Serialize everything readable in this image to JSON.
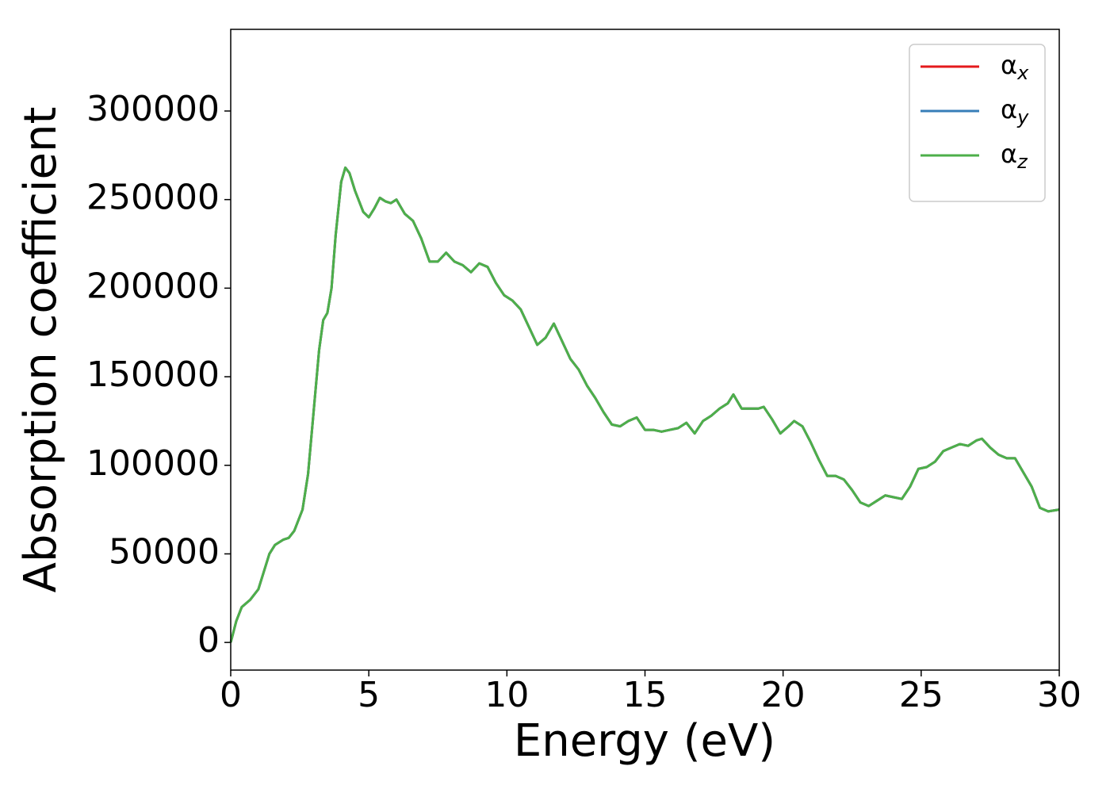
{
  "chart_data": {
    "type": "line",
    "xlabel": "Energy (eV)",
    "ylabel": "Absorption coefficient",
    "x": [
      0,
      0.2,
      0.4,
      0.7,
      1.0,
      1.2,
      1.4,
      1.6,
      1.9,
      2.1,
      2.3,
      2.6,
      2.8,
      3.0,
      3.2,
      3.35,
      3.5,
      3.65,
      3.8,
      4.0,
      4.15,
      4.3,
      4.5,
      4.8,
      5.0,
      5.2,
      5.4,
      5.6,
      5.8,
      6.0,
      6.3,
      6.6,
      6.9,
      7.2,
      7.5,
      7.8,
      8.1,
      8.4,
      8.7,
      9.0,
      9.3,
      9.6,
      9.9,
      10.2,
      10.5,
      10.8,
      11.1,
      11.4,
      11.7,
      12.0,
      12.3,
      12.6,
      12.9,
      13.2,
      13.5,
      13.8,
      14.1,
      14.4,
      14.7,
      15.0,
      15.3,
      15.6,
      15.9,
      16.2,
      16.5,
      16.8,
      17.1,
      17.4,
      17.7,
      18.0,
      18.2,
      18.5,
      18.8,
      19.1,
      19.3,
      19.6,
      19.9,
      20.2,
      20.4,
      20.7,
      21.0,
      21.3,
      21.6,
      21.9,
      22.2,
      22.5,
      22.8,
      23.1,
      23.4,
      23.7,
      24.0,
      24.3,
      24.6,
      24.9,
      25.2,
      25.5,
      25.8,
      26.1,
      26.4,
      26.7,
      27.0,
      27.2,
      27.5,
      27.8,
      28.1,
      28.4,
      28.7,
      29.0,
      29.3,
      29.6,
      30.0
    ],
    "series": [
      {
        "name": "αx",
        "color": "#e41a1c",
        "values": [
          0,
          12000,
          20000,
          24000,
          30000,
          40000,
          50000,
          55000,
          58000,
          59000,
          63000,
          75000,
          95000,
          130000,
          165000,
          182000,
          186000,
          200000,
          230000,
          260000,
          268000,
          265000,
          255000,
          243000,
          240000,
          245000,
          251000,
          249000,
          248000,
          250000,
          242000,
          238000,
          228000,
          215000,
          215000,
          220000,
          215000,
          213000,
          209000,
          214000,
          212000,
          203000,
          196000,
          193000,
          188000,
          178000,
          168000,
          172000,
          180000,
          170000,
          160000,
          154000,
          145000,
          138000,
          130000,
          123000,
          122000,
          125000,
          127000,
          120000,
          120000,
          119000,
          120000,
          121000,
          124000,
          118000,
          125000,
          128000,
          132000,
          135000,
          140000,
          132000,
          132000,
          132000,
          133000,
          126000,
          118000,
          122000,
          125000,
          122000,
          113000,
          103000,
          94000,
          94000,
          92000,
          86000,
          79000,
          77000,
          80000,
          83000,
          82000,
          81000,
          88000,
          98000,
          99000,
          102000,
          108000,
          110000,
          112000,
          111000,
          114000,
          115000,
          110000,
          106000,
          104000,
          104000,
          96000,
          88000,
          76000,
          74000,
          75000
        ]
      },
      {
        "name": "αy",
        "color": "#377eb8",
        "values": [
          0,
          12000,
          20000,
          24000,
          30000,
          40000,
          50000,
          55000,
          58000,
          59000,
          63000,
          75000,
          95000,
          130000,
          165000,
          182000,
          186000,
          200000,
          230000,
          260000,
          268000,
          265000,
          255000,
          243000,
          240000,
          245000,
          251000,
          249000,
          248000,
          250000,
          242000,
          238000,
          228000,
          215000,
          215000,
          220000,
          215000,
          213000,
          209000,
          214000,
          212000,
          203000,
          196000,
          193000,
          188000,
          178000,
          168000,
          172000,
          180000,
          170000,
          160000,
          154000,
          145000,
          138000,
          130000,
          123000,
          122000,
          125000,
          127000,
          120000,
          120000,
          119000,
          120000,
          121000,
          124000,
          118000,
          125000,
          128000,
          132000,
          135000,
          140000,
          132000,
          132000,
          132000,
          133000,
          126000,
          118000,
          122000,
          125000,
          122000,
          113000,
          103000,
          94000,
          94000,
          92000,
          86000,
          79000,
          77000,
          80000,
          83000,
          82000,
          81000,
          88000,
          98000,
          99000,
          102000,
          108000,
          110000,
          112000,
          111000,
          114000,
          115000,
          110000,
          106000,
          104000,
          104000,
          96000,
          88000,
          76000,
          74000,
          75000
        ]
      },
      {
        "name": "αz",
        "color": "#4daf4a",
        "values": [
          0,
          12000,
          20000,
          24000,
          30000,
          40000,
          50000,
          55000,
          58000,
          59000,
          63000,
          75000,
          95000,
          130000,
          165000,
          182000,
          186000,
          200000,
          230000,
          260000,
          268000,
          265000,
          255000,
          243000,
          240000,
          245000,
          251000,
          249000,
          248000,
          250000,
          242000,
          238000,
          228000,
          215000,
          215000,
          220000,
          215000,
          213000,
          209000,
          214000,
          212000,
          203000,
          196000,
          193000,
          188000,
          178000,
          168000,
          172000,
          180000,
          170000,
          160000,
          154000,
          145000,
          138000,
          130000,
          123000,
          122000,
          125000,
          127000,
          120000,
          120000,
          119000,
          120000,
          121000,
          124000,
          118000,
          125000,
          128000,
          132000,
          135000,
          140000,
          132000,
          132000,
          132000,
          133000,
          126000,
          118000,
          122000,
          125000,
          122000,
          113000,
          103000,
          94000,
          94000,
          92000,
          86000,
          79000,
          77000,
          80000,
          83000,
          82000,
          81000,
          88000,
          98000,
          99000,
          102000,
          108000,
          110000,
          112000,
          111000,
          114000,
          115000,
          110000,
          106000,
          104000,
          104000,
          96000,
          88000,
          76000,
          74000,
          75000
        ]
      }
    ],
    "xlim": [
      0,
      30
    ],
    "xticks": [
      0,
      5,
      10,
      15,
      20,
      25,
      30
    ],
    "ylim": [
      -15600,
      346100
    ],
    "yticks": [
      0,
      50000,
      100000,
      150000,
      200000,
      250000,
      300000
    ],
    "grid": false,
    "legend": "upper right"
  }
}
